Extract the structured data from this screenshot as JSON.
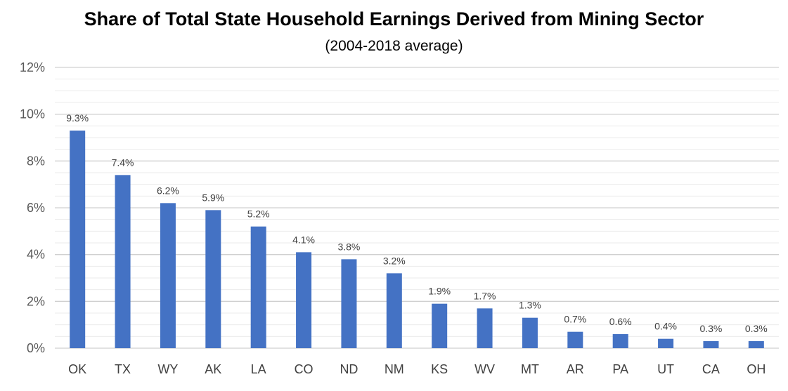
{
  "chart_data": {
    "type": "bar",
    "title": "Share of Total State Household Earnings Derived from Mining Sector",
    "subtitle": "(2004-2018 average)",
    "xlabel": "",
    "ylabel": "",
    "categories": [
      "OK",
      "TX",
      "WY",
      "AK",
      "LA",
      "CO",
      "ND",
      "NM",
      "KS",
      "WV",
      "MT",
      "AR",
      "PA",
      "UT",
      "CA",
      "OH"
    ],
    "values": [
      9.3,
      7.4,
      6.2,
      5.9,
      5.2,
      4.1,
      3.8,
      3.2,
      1.9,
      1.7,
      1.3,
      0.7,
      0.6,
      0.4,
      0.3,
      0.3
    ],
    "data_labels": [
      "9.3%",
      "7.4%",
      "6.2%",
      "5.9%",
      "5.2%",
      "4.1%",
      "3.8%",
      "3.2%",
      "1.9%",
      "1.7%",
      "1.3%",
      "0.7%",
      "0.6%",
      "0.4%",
      "0.3%",
      "0.3%"
    ],
    "y_ticks": [
      0,
      2,
      4,
      6,
      8,
      10,
      12
    ],
    "y_tick_labels": [
      "0%",
      "2%",
      "4%",
      "6%",
      "8%",
      "10%",
      "12%"
    ],
    "ylim": [
      0,
      12
    ],
    "minor_grid_step": 0.5,
    "grid": true,
    "legend": "none",
    "colors": {
      "bar": "#4472C4",
      "major_grid": "#D0D0D0",
      "minor_grid": "#EBEBEB"
    }
  }
}
